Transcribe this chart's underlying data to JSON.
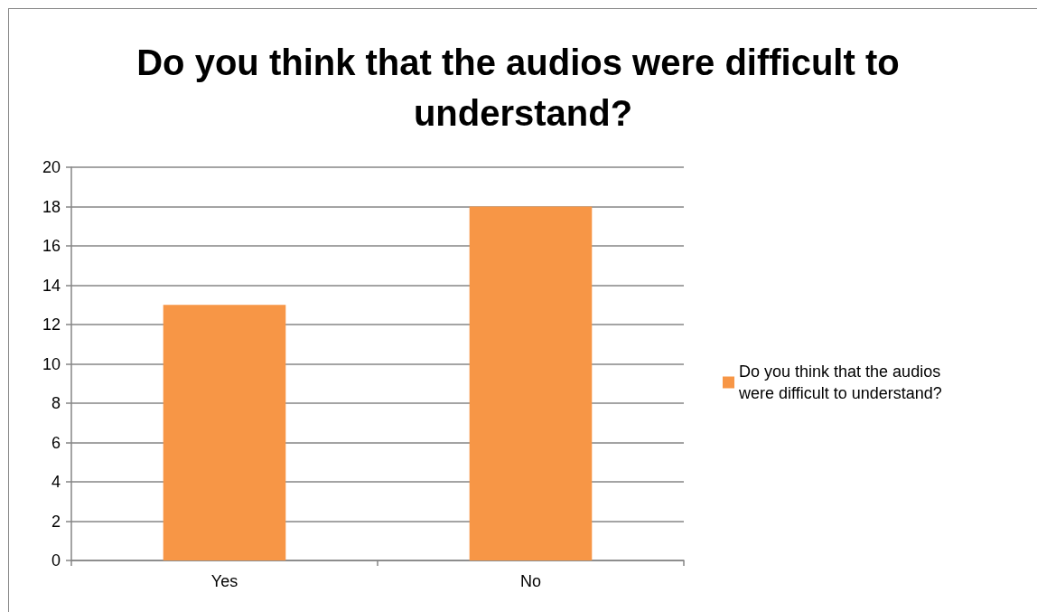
{
  "chart_data": {
    "type": "bar",
    "title": "Do you think that the audios were difficult to understand?",
    "categories": [
      "Yes",
      "No"
    ],
    "series": [
      {
        "name": "Do you think that the audios were difficult to understand?",
        "color": "#f79646",
        "values": [
          13,
          18
        ]
      }
    ],
    "ylim": [
      0,
      20
    ],
    "yticks": [
      0,
      2,
      4,
      6,
      8,
      10,
      12,
      14,
      16,
      18,
      20
    ],
    "grid": "y",
    "legend": "right"
  }
}
